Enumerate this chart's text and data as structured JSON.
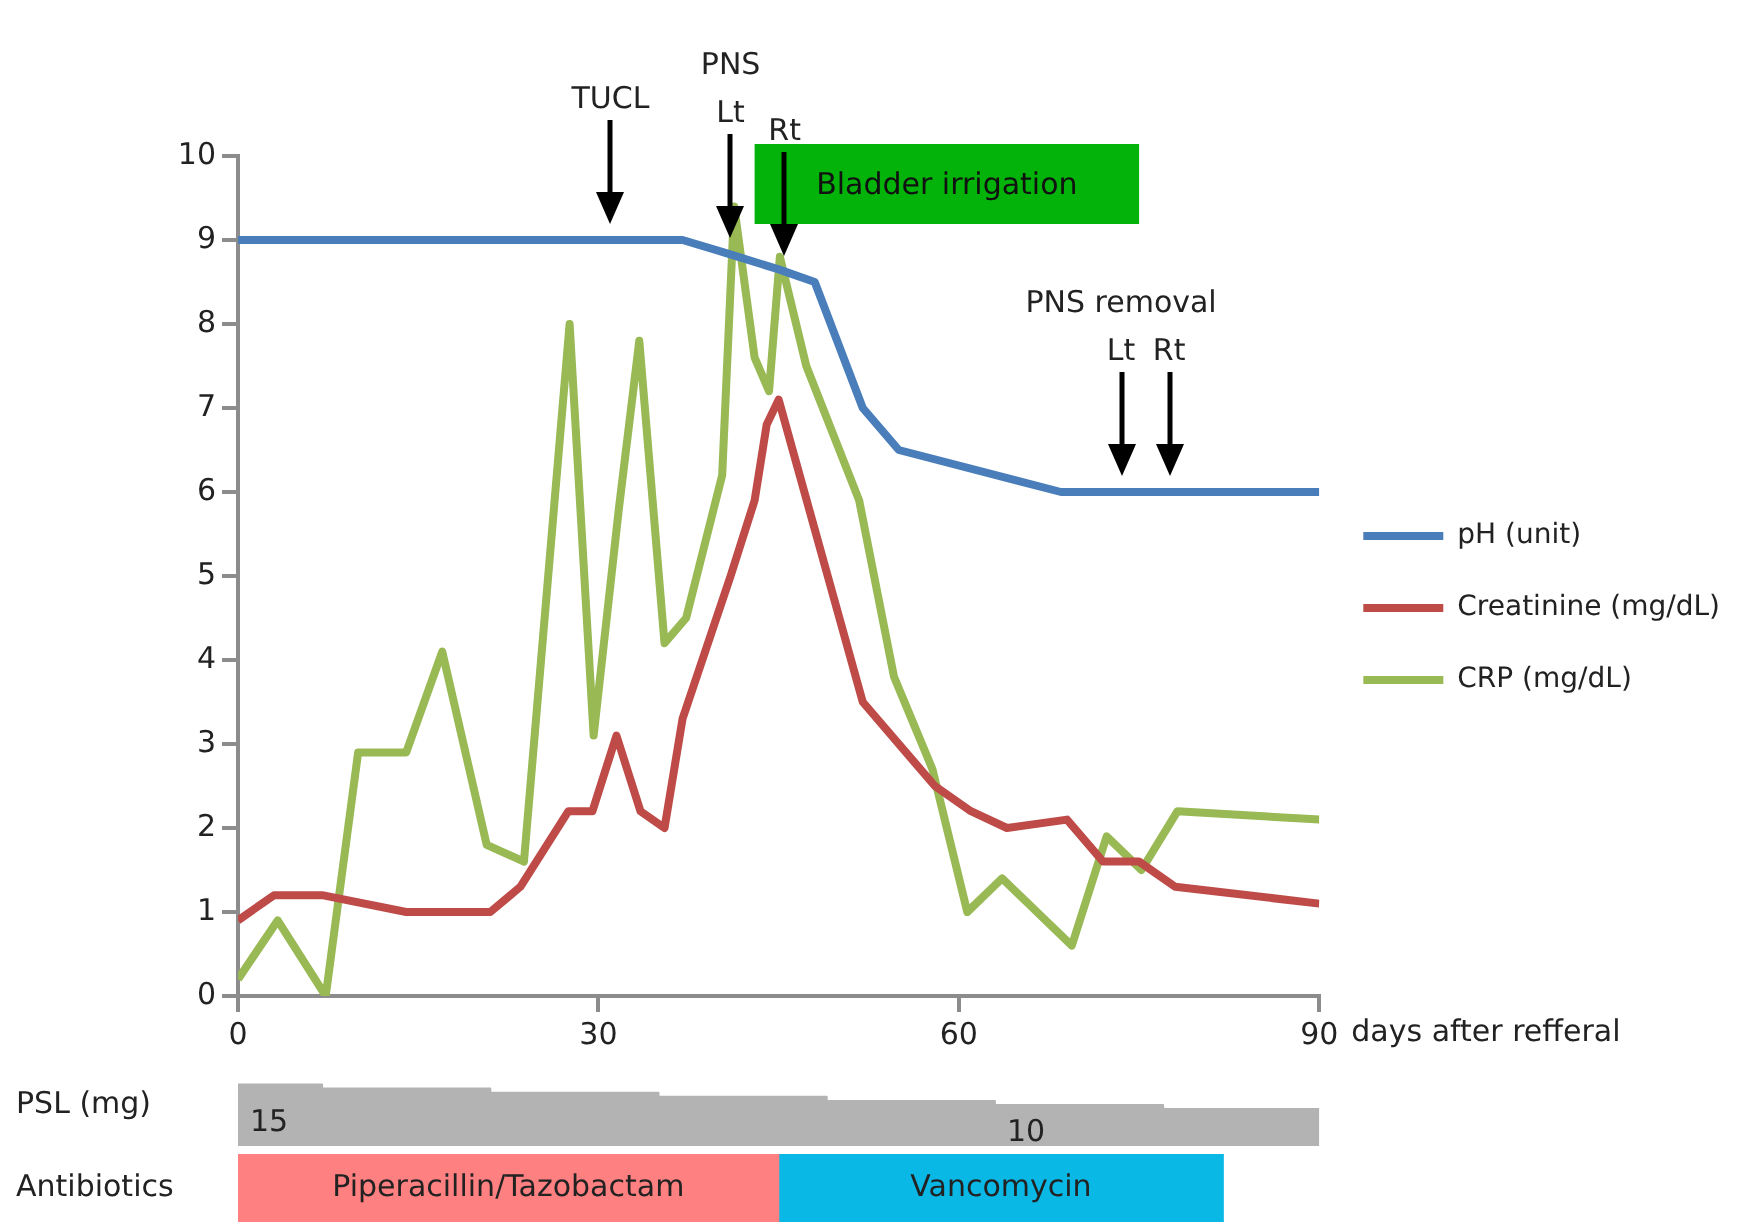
{
  "chart_data": [
    {
      "type": "line",
      "xlabel": "days after refferal",
      "xlim": [
        0,
        90
      ],
      "xticks": [
        0,
        30,
        60,
        90
      ],
      "ylim": [
        0,
        10
      ],
      "yticks": [
        0,
        1,
        2,
        3,
        4,
        5,
        6,
        7,
        8,
        9,
        10
      ],
      "legend": "right",
      "marker": "none",
      "series": [
        {
          "name": "pH (unit)",
          "color": "#4a7ebb",
          "x": [
            0,
            37,
            40.5,
            45,
            48,
            52,
            55,
            68.5,
            90
          ],
          "values": [
            9,
            9,
            8.85,
            8.65,
            8.5,
            7,
            6.5,
            6,
            6
          ]
        },
        {
          "name": "Creatinine (mg/dL)",
          "color": "#be4b48",
          "x": [
            0,
            3,
            7,
            14,
            21,
            23.5,
            27.5,
            29.5,
            31.5,
            33.5,
            35.5,
            37,
            41,
            43,
            44,
            45,
            52,
            58,
            61,
            64,
            69,
            72,
            75,
            78,
            90
          ],
          "values": [
            0.9,
            1.2,
            1.2,
            1,
            1,
            1.3,
            2.2,
            2.2,
            3.1,
            2.2,
            2,
            3.3,
            5,
            5.9,
            6.8,
            7.1,
            3.5,
            2.5,
            2.2,
            2,
            2.1,
            1.6,
            1.6,
            1.3,
            1.1
          ]
        },
        {
          "name": "CRP (mg/dL)",
          "color": "#98b954",
          "x": [
            0,
            3.3,
            7.3,
            10,
            14,
            17,
            20.7,
            23.8,
            27.6,
            29.6,
            31.7,
            33.4,
            35.5,
            37.3,
            40.3,
            41.3,
            43,
            44.2,
            45.1,
            47.3,
            51.7,
            54.6,
            57.8,
            60.7,
            63.6,
            69.4,
            72.3,
            75.2,
            78.2,
            90
          ],
          "values": [
            0.2,
            0.9,
            0,
            2.9,
            2.9,
            4.1,
            1.8,
            1.6,
            8,
            3.1,
            5.8,
            7.8,
            4.2,
            4.5,
            6.2,
            9.4,
            7.6,
            7.2,
            8.8,
            7.5,
            5.9,
            3.8,
            2.7,
            1,
            1.4,
            0.6,
            1.9,
            1.5,
            2.2,
            2.1
          ]
        }
      ],
      "ref_lines": [
        {
          "axis": "x",
          "value": 31,
          "label": "TUCL"
        },
        {
          "axis": "x",
          "value": 41,
          "label": "PNS\nLt"
        },
        {
          "axis": "x",
          "value": 45.5,
          "label": "Rt"
        },
        {
          "axis": "x",
          "value": 73.5,
          "label": "PNS removal\nLt"
        },
        {
          "axis": "x",
          "value": 77.5,
          "label": "Rt"
        }
      ],
      "bands": [
        {
          "axis": "x",
          "from": 43,
          "to": 75,
          "label": "Bladder irrigation",
          "color": "#04b30a"
        }
      ]
    },
    {
      "type": "area",
      "ylabel": "PSL (mg)",
      "xlim": [
        0,
        90
      ],
      "tick_labels": false,
      "x": [
        0,
        7,
        7,
        21,
        21,
        35,
        35,
        49,
        49,
        63,
        63,
        77,
        77,
        90
      ],
      "series": [
        {
          "color": "#b3b3b3",
          "values": [
            15,
            15,
            14,
            14,
            13,
            13,
            12,
            12,
            11,
            11,
            10,
            10,
            9,
            9
          ],
          "value_labels": [
            "15",
            null,
            null,
            null,
            null,
            null,
            null,
            null,
            null,
            null,
            "10",
            null,
            null,
            null
          ]
        }
      ]
    },
    {
      "type": "bar",
      "orientation": "horizontal",
      "stacked": true,
      "ylabel": "Antibiotics",
      "xlim": [
        0,
        90
      ],
      "tick_labels": false,
      "categories": [
        null
      ],
      "series": [
        {
          "name": "Piperacillin/Tazobactam",
          "color": "#ff8080",
          "values": [
            45
          ]
        },
        {
          "name": "Vancomycin",
          "color": "#0ab8e6",
          "values": [
            37
          ]
        }
      ]
    }
  ]
}
